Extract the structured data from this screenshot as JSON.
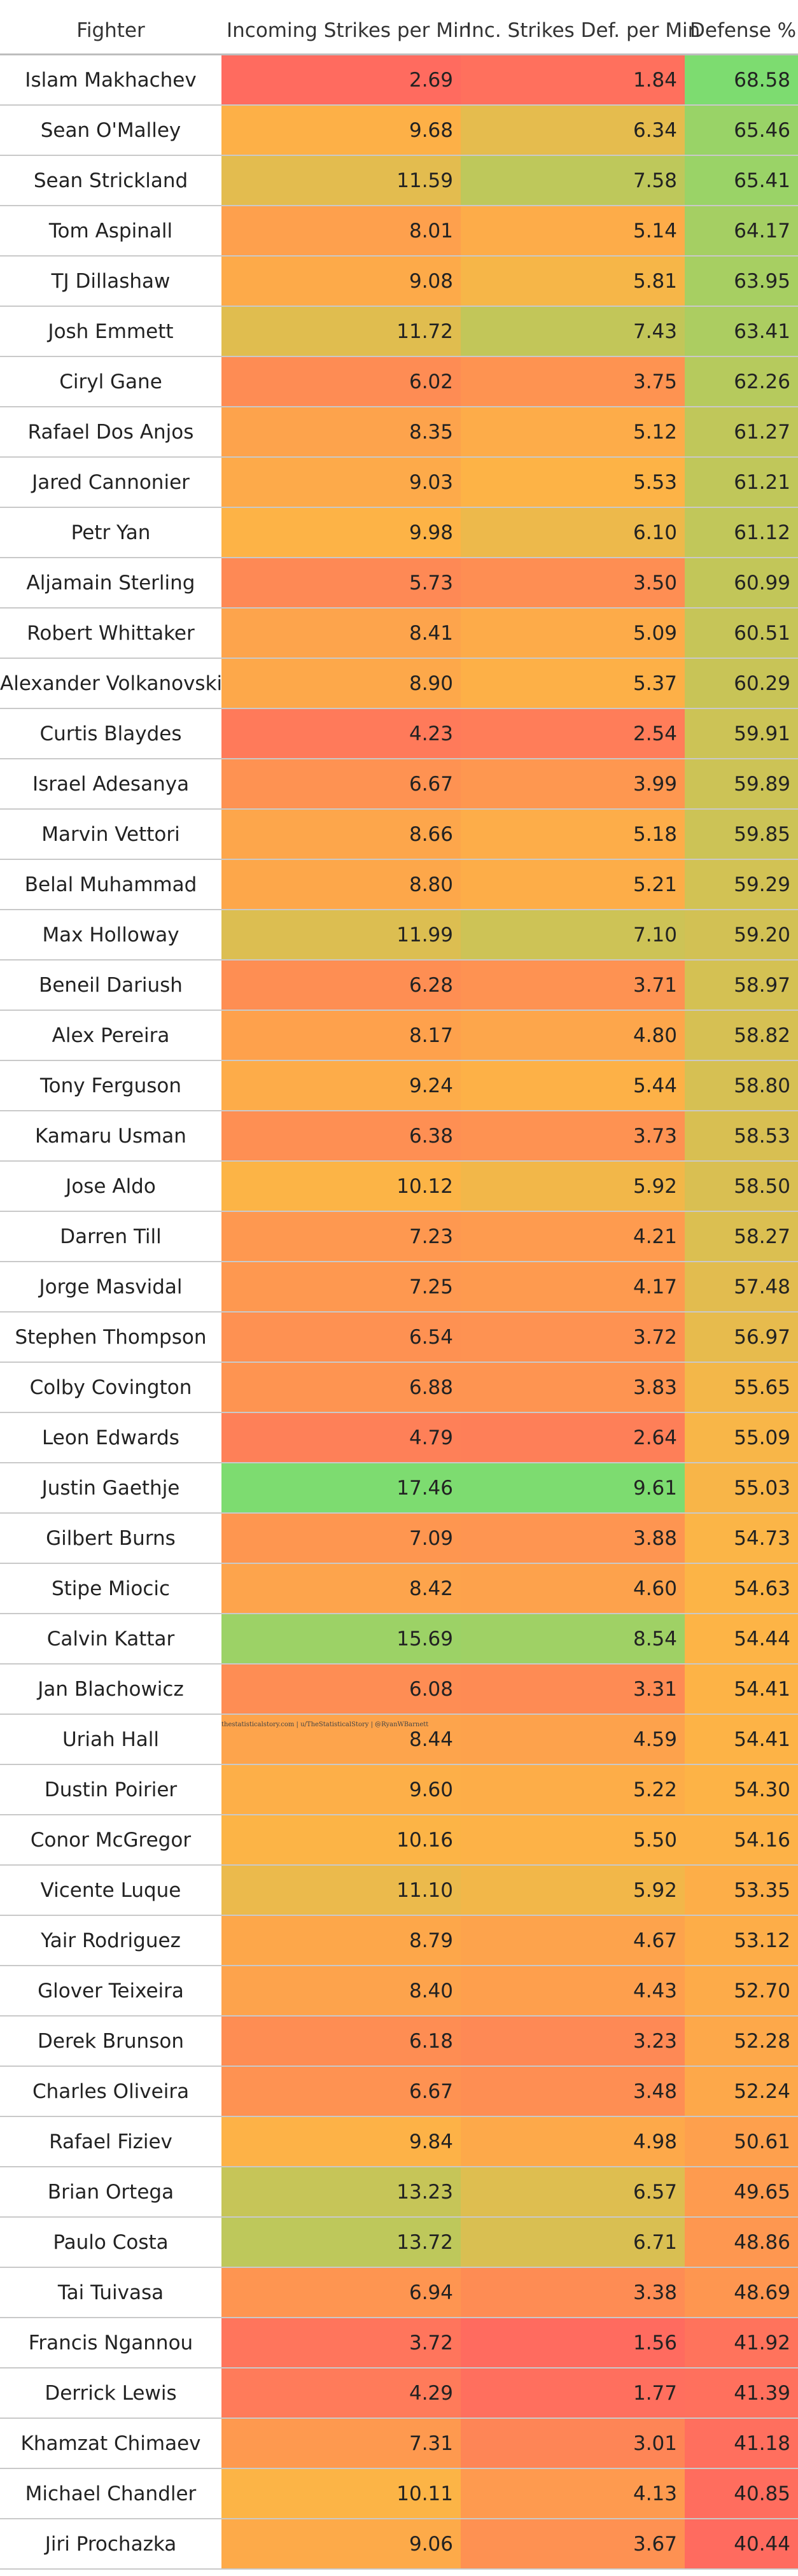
{
  "chart_data": {
    "type": "table",
    "columns": [
      "Fighter",
      "Incoming Strikes per Min",
      "Inc. Strikes Def. per Min",
      "Defense %"
    ],
    "rows": [
      {
        "fighter": "Islam Makhachev",
        "incoming": "2.69",
        "defended": "1.84",
        "defense": "68.58"
      },
      {
        "fighter": "Sean O'Malley",
        "incoming": "9.68",
        "defended": "6.34",
        "defense": "65.46"
      },
      {
        "fighter": "Sean Strickland",
        "incoming": "11.59",
        "defended": "7.58",
        "defense": "65.41"
      },
      {
        "fighter": "Tom Aspinall",
        "incoming": "8.01",
        "defended": "5.14",
        "defense": "64.17"
      },
      {
        "fighter": "TJ Dillashaw",
        "incoming": "9.08",
        "defended": "5.81",
        "defense": "63.95"
      },
      {
        "fighter": "Josh Emmett",
        "incoming": "11.72",
        "defended": "7.43",
        "defense": "63.41"
      },
      {
        "fighter": "Ciryl Gane",
        "incoming": "6.02",
        "defended": "3.75",
        "defense": "62.26"
      },
      {
        "fighter": "Rafael Dos Anjos",
        "incoming": "8.35",
        "defended": "5.12",
        "defense": "61.27"
      },
      {
        "fighter": "Jared Cannonier",
        "incoming": "9.03",
        "defended": "5.53",
        "defense": "61.21"
      },
      {
        "fighter": "Petr Yan",
        "incoming": "9.98",
        "defended": "6.10",
        "defense": "61.12"
      },
      {
        "fighter": "Aljamain Sterling",
        "incoming": "5.73",
        "defended": "3.50",
        "defense": "60.99"
      },
      {
        "fighter": "Robert Whittaker",
        "incoming": "8.41",
        "defended": "5.09",
        "defense": "60.51"
      },
      {
        "fighter": "Alexander Volkanovski",
        "incoming": "8.90",
        "defended": "5.37",
        "defense": "60.29"
      },
      {
        "fighter": "Curtis Blaydes",
        "incoming": "4.23",
        "defended": "2.54",
        "defense": "59.91"
      },
      {
        "fighter": "Israel Adesanya",
        "incoming": "6.67",
        "defended": "3.99",
        "defense": "59.89"
      },
      {
        "fighter": "Marvin Vettori",
        "incoming": "8.66",
        "defended": "5.18",
        "defense": "59.85"
      },
      {
        "fighter": "Belal Muhammad",
        "incoming": "8.80",
        "defended": "5.21",
        "defense": "59.29"
      },
      {
        "fighter": "Max Holloway",
        "incoming": "11.99",
        "defended": "7.10",
        "defense": "59.20"
      },
      {
        "fighter": "Beneil Dariush",
        "incoming": "6.28",
        "defended": "3.71",
        "defense": "58.97"
      },
      {
        "fighter": "Alex Pereira",
        "incoming": "8.17",
        "defended": "4.80",
        "defense": "58.82"
      },
      {
        "fighter": "Tony Ferguson",
        "incoming": "9.24",
        "defended": "5.44",
        "defense": "58.80"
      },
      {
        "fighter": "Kamaru Usman",
        "incoming": "6.38",
        "defended": "3.73",
        "defense": "58.53"
      },
      {
        "fighter": "Jose Aldo",
        "incoming": "10.12",
        "defended": "5.92",
        "defense": "58.50"
      },
      {
        "fighter": "Darren Till",
        "incoming": "7.23",
        "defended": "4.21",
        "defense": "58.27"
      },
      {
        "fighter": "Jorge Masvidal",
        "incoming": "7.25",
        "defended": "4.17",
        "defense": "57.48"
      },
      {
        "fighter": "Stephen Thompson",
        "incoming": "6.54",
        "defended": "3.72",
        "defense": "56.97"
      },
      {
        "fighter": "Colby Covington",
        "incoming": "6.88",
        "defended": "3.83",
        "defense": "55.65"
      },
      {
        "fighter": "Leon Edwards",
        "incoming": "4.79",
        "defended": "2.64",
        "defense": "55.09"
      },
      {
        "fighter": "Justin Gaethje",
        "incoming": "17.46",
        "defended": "9.61",
        "defense": "55.03"
      },
      {
        "fighter": "Gilbert Burns",
        "incoming": "7.09",
        "defended": "3.88",
        "defense": "54.73"
      },
      {
        "fighter": "Stipe Miocic",
        "incoming": "8.42",
        "defended": "4.60",
        "defense": "54.63"
      },
      {
        "fighter": "Calvin Kattar",
        "incoming": "15.69",
        "defended": "8.54",
        "defense": "54.44"
      },
      {
        "fighter": "Jan Blachowicz",
        "incoming": "6.08",
        "defended": "3.31",
        "defense": "54.41"
      },
      {
        "fighter": "Uriah Hall",
        "incoming": "8.44",
        "defended": "4.59",
        "defense": "54.41"
      },
      {
        "fighter": "Dustin Poirier",
        "incoming": "9.60",
        "defended": "5.22",
        "defense": "54.30"
      },
      {
        "fighter": "Conor McGregor",
        "incoming": "10.16",
        "defended": "5.50",
        "defense": "54.16"
      },
      {
        "fighter": "Vicente Luque",
        "incoming": "11.10",
        "defended": "5.92",
        "defense": "53.35"
      },
      {
        "fighter": "Yair Rodriguez",
        "incoming": "8.79",
        "defended": "4.67",
        "defense": "53.12"
      },
      {
        "fighter": "Glover Teixeira",
        "incoming": "8.40",
        "defended": "4.43",
        "defense": "52.70"
      },
      {
        "fighter": "Derek Brunson",
        "incoming": "6.18",
        "defended": "3.23",
        "defense": "52.28"
      },
      {
        "fighter": "Charles Oliveira",
        "incoming": "6.67",
        "defended": "3.48",
        "defense": "52.24"
      },
      {
        "fighter": "Rafael Fiziev",
        "incoming": "9.84",
        "defended": "4.98",
        "defense": "50.61"
      },
      {
        "fighter": "Brian Ortega",
        "incoming": "13.23",
        "defended": "6.57",
        "defense": "49.65"
      },
      {
        "fighter": "Paulo Costa",
        "incoming": "13.72",
        "defended": "6.71",
        "defense": "48.86"
      },
      {
        "fighter": "Tai Tuivasa",
        "incoming": "6.94",
        "defended": "3.38",
        "defense": "48.69"
      },
      {
        "fighter": "Francis Ngannou",
        "incoming": "3.72",
        "defended": "1.56",
        "defense": "41.92"
      },
      {
        "fighter": "Derrick Lewis",
        "incoming": "4.29",
        "defended": "1.77",
        "defense": "41.39"
      },
      {
        "fighter": "Khamzat Chimaev",
        "incoming": "7.31",
        "defended": "3.01",
        "defense": "41.18"
      },
      {
        "fighter": "Michael Chandler",
        "incoming": "10.11",
        "defended": "4.13",
        "defense": "40.85"
      },
      {
        "fighter": "Jiri Prochazka",
        "incoming": "9.06",
        "defended": "3.67",
        "defense": "40.44"
      }
    ],
    "color_scale": {
      "low": "#ff6b5f",
      "mid": "#fdb446",
      "high": "#7ddc70"
    }
  },
  "credit": "thestatisticalstory.com | u/TheStatisticalStory | @RyanWBarnett"
}
